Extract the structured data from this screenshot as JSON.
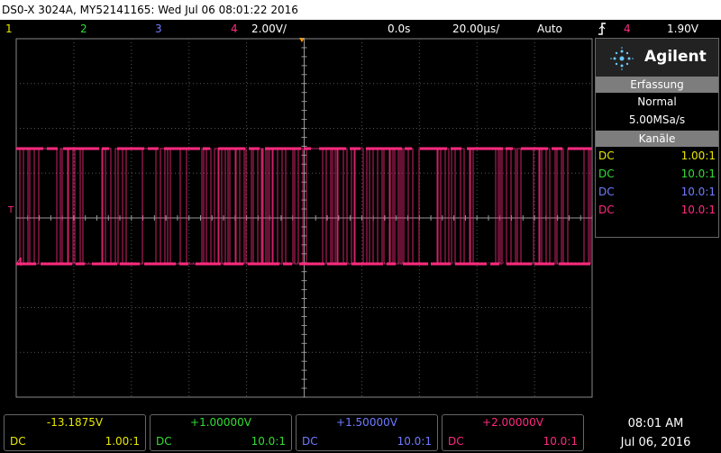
{
  "title_bar": "DS0-X 3024A, MY52141165: Wed Jul 06 08:01:22 2016",
  "status_bar": {
    "channels": [
      "1",
      "2",
      "3",
      "4"
    ],
    "channel_scale": "2.00V/",
    "time_delay": "0.0s",
    "time_scale": "20.00µs/",
    "trigger_mode": "Auto",
    "trigger_source": "4",
    "trigger_level": "1.90V"
  },
  "markers": {
    "trigger": "T",
    "ground": "4"
  },
  "panel": {
    "brand": "Agilent",
    "acquisition": {
      "heading": "Erfassung",
      "mode": "Normal",
      "rate": "5.00MSa/s"
    },
    "channels": {
      "heading": "Kanäle",
      "rows": [
        {
          "coupling": "DC",
          "probe": "1.00:1"
        },
        {
          "coupling": "DC",
          "probe": "10.0:1"
        },
        {
          "coupling": "DC",
          "probe": "10.0:1"
        },
        {
          "coupling": "DC",
          "probe": "10.0:1"
        }
      ]
    }
  },
  "bottom_bar": {
    "channels": [
      {
        "offset": "-13.1875V",
        "coupling": "DC",
        "probe": "1.00:1"
      },
      {
        "offset": "+1.00000V",
        "coupling": "DC",
        "probe": "10.0:1"
      },
      {
        "offset": "+1.50000V",
        "coupling": "DC",
        "probe": "10.0:1"
      },
      {
        "offset": "+2.00000V",
        "coupling": "DC",
        "probe": "10.0:1"
      }
    ],
    "time": "08:01 AM",
    "date": "Jul 06, 2016"
  }
}
